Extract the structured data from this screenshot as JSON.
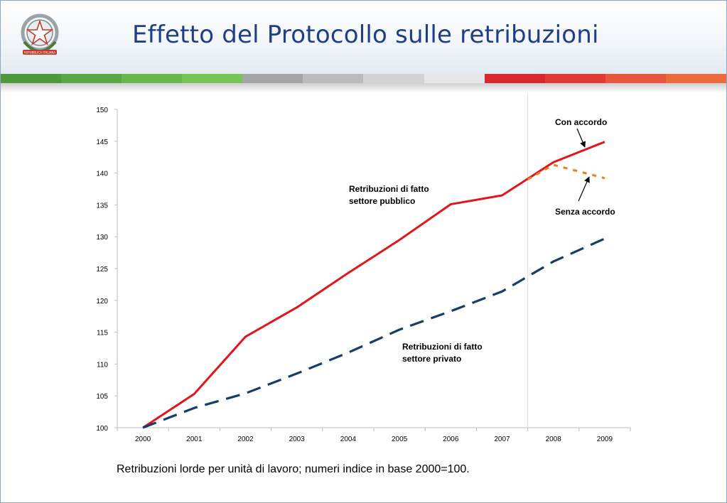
{
  "header": {
    "title": "Effetto del Protocollo sulle retribuzioni",
    "emblem_icon": "italian-republic-emblem-icon",
    "emblem_text": "REPUBBLICA ITALIANA"
  },
  "band_colors": [
    "#4e9a3a",
    "#5aa843",
    "#66b84c",
    "#76c455",
    "#a3a6a9",
    "#b9bcbf",
    "#d1d3d5",
    "#e6e7e8",
    "#d8282e",
    "#e23a33",
    "#e8553a",
    "#ec6a3c"
  ],
  "chart_data": {
    "type": "line",
    "x": [
      2000,
      2001,
      2002,
      2003,
      2004,
      2005,
      2006,
      2007,
      2008,
      2009
    ],
    "ylim": [
      100,
      150
    ],
    "yticks": [
      100,
      105,
      110,
      115,
      120,
      125,
      130,
      135,
      140,
      145,
      150
    ],
    "grid": false,
    "series": [
      {
        "key": "pubblico",
        "name": "Retribuzioni di fatto settore pubblico",
        "style": "solid",
        "color": "#e3151b",
        "x": [
          2000,
          2001,
          2002,
          2003,
          2004,
          2005,
          2006,
          2007,
          2008,
          2009
        ],
        "values": [
          100,
          105.3,
          114.3,
          118.9,
          124.3,
          129.5,
          135.1,
          136.5,
          141.7,
          144.9
        ]
      },
      {
        "key": "privato",
        "name": "Retribuzioni di fatto settore privato",
        "style": "dashed",
        "color": "#153d6b",
        "x": [
          2000,
          2001,
          2002,
          2003,
          2004,
          2005,
          2006,
          2007,
          2008,
          2009
        ],
        "values": [
          100,
          103.1,
          105.4,
          108.5,
          111.8,
          115.4,
          118.3,
          121.4,
          126.1,
          129.7
        ]
      },
      {
        "key": "senza",
        "name": "Senza accordo",
        "style": "dotted",
        "color": "#f07d1a",
        "x": [
          2007.5,
          2008,
          2009
        ],
        "values": [
          139.0,
          141.3,
          139.2
        ]
      }
    ],
    "vline_x": 2007.5,
    "annotations": {
      "pubblico": [
        "Retribuzioni di fatto",
        "settore pubblico"
      ],
      "privato": [
        "Retribuzioni di fatto",
        "settore privato"
      ],
      "con_accordo": "Con accordo",
      "senza_accordo": "Senza accordo"
    }
  },
  "caption": "Retribuzioni lorde per unità di lavoro; numeri indice in base 2000=100."
}
